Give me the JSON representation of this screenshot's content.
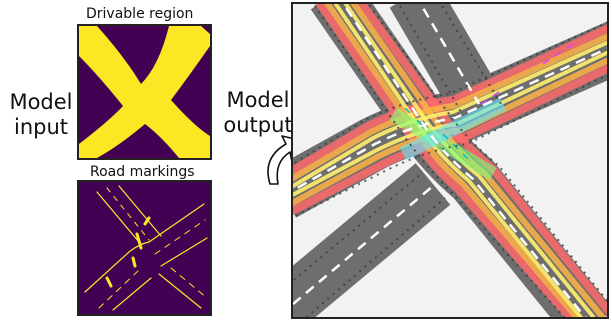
{
  "figure": {
    "model_input_line1": "Model",
    "model_input_line2": "input",
    "model_output_line1": "Model",
    "model_output_line2": "output",
    "drivable_caption": "Drivable region",
    "markings_caption": "Road markings"
  },
  "colors": {
    "viridis_dark": "#440154",
    "viridis_yellow": "#fde725",
    "output_background": "#f2f2f2",
    "road_gray": "#6e6e6e",
    "lane_white": "#ffffff",
    "band_red": "#ff6a6a",
    "band_orange": "#ffb347",
    "band_yellow": "#fff06a",
    "center_green": "#7cff7c",
    "center_cyan": "#5ee6ff",
    "arrow_magenta": "#e040fb"
  }
}
